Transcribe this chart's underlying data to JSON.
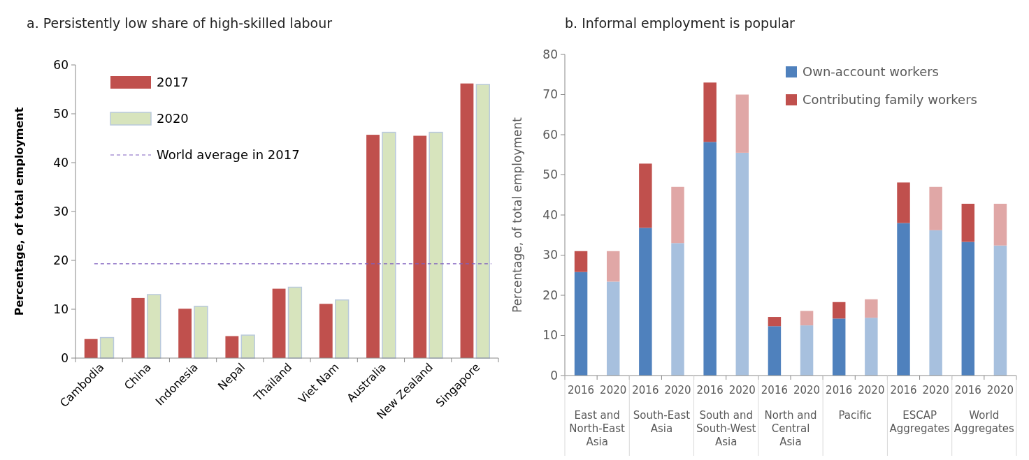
{
  "chart_data": [
    {
      "type": "bar",
      "title": "a. Persistently low share of high-skilled labour",
      "ylabel": "Percentage, of total employment",
      "categories": [
        "Cambodia",
        "China",
        "Indonesia",
        "Nepal",
        "Thailand",
        "Viet Nam",
        "Australia",
        "New Zealand",
        "Singapore"
      ],
      "series": [
        {
          "name": "2017",
          "color": "#c0504d",
          "values": [
            3.9,
            12.3,
            10.1,
            4.5,
            14.2,
            11.1,
            45.7,
            45.5,
            56.2
          ]
        },
        {
          "name": "2020",
          "color": "#d7e4bd",
          "values": [
            4.2,
            13.0,
            10.6,
            4.7,
            14.5,
            11.9,
            46.2,
            46.2,
            56.0
          ]
        }
      ],
      "ref_lines": [
        {
          "axis": "y",
          "value": 19.3,
          "label": "World average in 2017",
          "color": "#7f5fbf",
          "line_style": "dashed"
        }
      ],
      "ylim": [
        0,
        60
      ],
      "yticks": [
        0,
        10,
        20,
        30,
        40,
        50,
        60
      ],
      "grid": false,
      "legend": "top left"
    },
    {
      "type": "bar",
      "title": "b. Informal employment is popular",
      "ylabel": "Percentage, of total employment",
      "stacked": true,
      "categories": [
        "2016",
        "2020",
        "2016",
        "2020",
        "2016",
        "2020",
        "2016",
        "2020",
        "2016",
        "2020",
        "2016",
        "2020",
        "2016",
        "2020"
      ],
      "annotations": [
        "East and North-East Asia",
        "South-East Asia",
        "South and South-West Asia",
        "North and Central Asia",
        "Pacific",
        "ESCAP Aggregates",
        "World Aggregates"
      ],
      "series": [
        {
          "name": "Own-account workers",
          "color": "#4f81bd",
          "colors": [
            "#4f81bd",
            "#a7c0de",
            "#4f81bd",
            "#a7c0de",
            "#4f81bd",
            "#a7c0de",
            "#4f81bd",
            "#a7c0de",
            "#4f81bd",
            "#a7c0de",
            "#4f81bd",
            "#a7c0de",
            "#4f81bd",
            "#a7c0de"
          ],
          "values": [
            25.8,
            23.4,
            36.8,
            33.0,
            58.2,
            55.5,
            12.3,
            12.5,
            14.2,
            14.4,
            38.0,
            36.2,
            33.3,
            32.4
          ]
        },
        {
          "name": "Contributing family workers",
          "color": "#c0504d",
          "colors": [
            "#c0504d",
            "#e0a7a6",
            "#c0504d",
            "#e0a7a6",
            "#c0504d",
            "#e0a7a6",
            "#c0504d",
            "#e0a7a6",
            "#c0504d",
            "#e0a7a6",
            "#c0504d",
            "#e0a7a6",
            "#c0504d",
            "#e0a7a6"
          ],
          "values": [
            5.2,
            7.6,
            16.0,
            14.0,
            14.8,
            14.5,
            2.3,
            3.6,
            4.1,
            4.6,
            10.1,
            10.8,
            9.5,
            10.4
          ]
        }
      ],
      "ylim": [
        0,
        80
      ],
      "yticks": [
        0,
        10,
        20,
        30,
        40,
        50,
        60,
        70,
        80
      ],
      "grid": false,
      "legend": "top right"
    }
  ]
}
